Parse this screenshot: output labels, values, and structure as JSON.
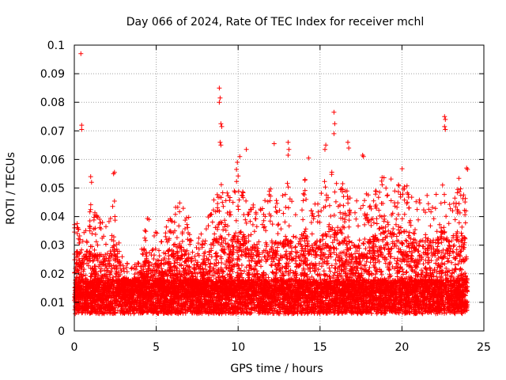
{
  "chart_data": {
    "type": "scatter",
    "title": "Day 066 of 2024, Rate Of TEC Index for receiver mchl",
    "xlabel": "GPS time / hours",
    "ylabel": "ROTI / TECUs",
    "xlim": [
      0,
      25
    ],
    "ylim": [
      0,
      0.1
    ],
    "x_ticks": [
      0,
      5,
      10,
      15,
      20,
      25
    ],
    "x_tick_labels": [
      "0",
      "5",
      "10",
      "15",
      "20",
      "25"
    ],
    "y_ticks": [
      0,
      0.01,
      0.02,
      0.03,
      0.04,
      0.05,
      0.06,
      0.07,
      0.08,
      0.09,
      0.1
    ],
    "y_tick_labels": [
      "0",
      "0.01",
      "0.02",
      "0.03",
      "0.04",
      "0.05",
      "0.06",
      "0.07",
      "0.08",
      "0.09",
      "0.1"
    ],
    "grid": true,
    "marker": "+",
    "color": "#ff0000",
    "outliers": [
      {
        "x": 0.4,
        "y": 0.097
      },
      {
        "x": 0.45,
        "y": 0.072
      },
      {
        "x": 0.45,
        "y": 0.0705
      },
      {
        "x": 8.85,
        "y": 0.085
      },
      {
        "x": 8.9,
        "y": 0.0815
      },
      {
        "x": 8.85,
        "y": 0.08
      },
      {
        "x": 8.95,
        "y": 0.0725
      },
      {
        "x": 9.0,
        "y": 0.0715
      },
      {
        "x": 8.9,
        "y": 0.066
      },
      {
        "x": 8.95,
        "y": 0.065
      },
      {
        "x": 15.85,
        "y": 0.0765
      },
      {
        "x": 15.9,
        "y": 0.0725
      },
      {
        "x": 15.85,
        "y": 0.069
      },
      {
        "x": 15.3,
        "y": 0.0635
      },
      {
        "x": 15.35,
        "y": 0.065
      },
      {
        "x": 16.7,
        "y": 0.066
      },
      {
        "x": 16.75,
        "y": 0.064
      },
      {
        "x": 22.6,
        "y": 0.075
      },
      {
        "x": 22.65,
        "y": 0.074
      },
      {
        "x": 22.6,
        "y": 0.0715
      },
      {
        "x": 22.65,
        "y": 0.0705
      },
      {
        "x": 13.05,
        "y": 0.066
      },
      {
        "x": 13.1,
        "y": 0.0635
      },
      {
        "x": 13.05,
        "y": 0.0615
      },
      {
        "x": 12.2,
        "y": 0.0655
      },
      {
        "x": 10.5,
        "y": 0.0635
      },
      {
        "x": 10.1,
        "y": 0.061
      },
      {
        "x": 9.95,
        "y": 0.059
      },
      {
        "x": 9.9,
        "y": 0.0565
      },
      {
        "x": 17.6,
        "y": 0.0615
      },
      {
        "x": 17.65,
        "y": 0.061
      },
      {
        "x": 14.3,
        "y": 0.0605
      },
      {
        "x": 2.45,
        "y": 0.0555
      },
      {
        "x": 2.4,
        "y": 0.055
      },
      {
        "x": 1.0,
        "y": 0.054
      },
      {
        "x": 1.05,
        "y": 0.052
      },
      {
        "x": 23.95,
        "y": 0.057
      },
      {
        "x": 24.0,
        "y": 0.0565
      }
    ],
    "activity_profile": {
      "hours": [
        0,
        0.5,
        1,
        1.5,
        2,
        2.5,
        3,
        3.5,
        4,
        4.5,
        5,
        5.5,
        6,
        6.5,
        7,
        7.5,
        8,
        8.5,
        9,
        9.5,
        10,
        10.5,
        11,
        11.5,
        12,
        12.5,
        13,
        13.5,
        14,
        14.5,
        15,
        15.5,
        16,
        16.5,
        17,
        17.5,
        18,
        18.5,
        19,
        19.5,
        20,
        20.5,
        21,
        21.5,
        22,
        22.5,
        23,
        23.5,
        24
      ],
      "typical_max_roti": [
        0.043,
        0.035,
        0.047,
        0.04,
        0.037,
        0.048,
        0.025,
        0.022,
        0.025,
        0.043,
        0.035,
        0.037,
        0.045,
        0.047,
        0.04,
        0.037,
        0.035,
        0.05,
        0.052,
        0.047,
        0.055,
        0.05,
        0.043,
        0.045,
        0.05,
        0.047,
        0.052,
        0.043,
        0.055,
        0.045,
        0.05,
        0.055,
        0.057,
        0.05,
        0.047,
        0.045,
        0.05,
        0.055,
        0.057,
        0.052,
        0.057,
        0.05,
        0.047,
        0.05,
        0.047,
        0.055,
        0.05,
        0.055,
        0.045
      ],
      "baseline_roti": 0.012
    }
  }
}
